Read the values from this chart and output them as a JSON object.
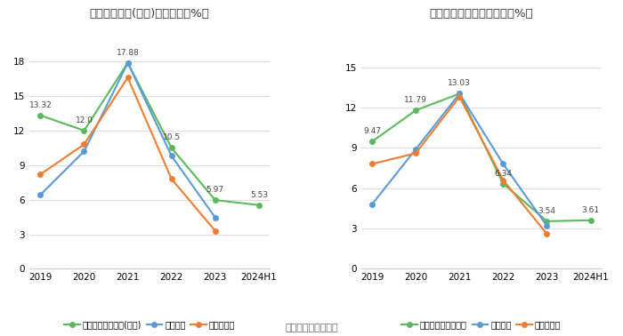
{
  "left_title": "净资产收益率(加权)历年情况（%）",
  "right_title": "投入资本回报率历年情况（%）",
  "xlabel": [
    "2019",
    "2020",
    "2021",
    "2022",
    "2023",
    "2024H1"
  ],
  "left": {
    "company": [
      13.32,
      12.0,
      17.88,
      10.5,
      5.97,
      5.53
    ],
    "industry_mean": [
      6.42,
      10.2,
      17.88,
      9.8,
      4.45,
      null
    ],
    "industry_median": [
      8.2,
      10.8,
      16.6,
      7.8,
      3.3,
      null
    ],
    "company_label": "公司净资产收益率(加权)",
    "mean_label": "行业均值",
    "median_label": "行业中位数",
    "ylim": [
      0,
      21
    ],
    "yticks": [
      0,
      3,
      6,
      9,
      12,
      15,
      18
    ]
  },
  "right": {
    "company": [
      9.47,
      11.79,
      13.03,
      6.34,
      3.54,
      3.61
    ],
    "industry_mean": [
      4.8,
      8.9,
      13.03,
      7.8,
      3.2,
      null
    ],
    "industry_median": [
      7.8,
      8.6,
      12.8,
      6.6,
      2.6,
      null
    ],
    "company_label": "公司投入资本回报率",
    "mean_label": "行业均值",
    "median_label": "行业中位数",
    "ylim": [
      0,
      18
    ],
    "yticks": [
      0,
      3,
      6,
      9,
      12,
      15
    ]
  },
  "colors": {
    "company": "#5cb85c",
    "industry_mean": "#5b9bd5",
    "industry_median": "#ed7d31"
  },
  "footer": "数据来源：恒生聚源",
  "bg_color": "#ffffff",
  "grid_color": "#dddddd"
}
